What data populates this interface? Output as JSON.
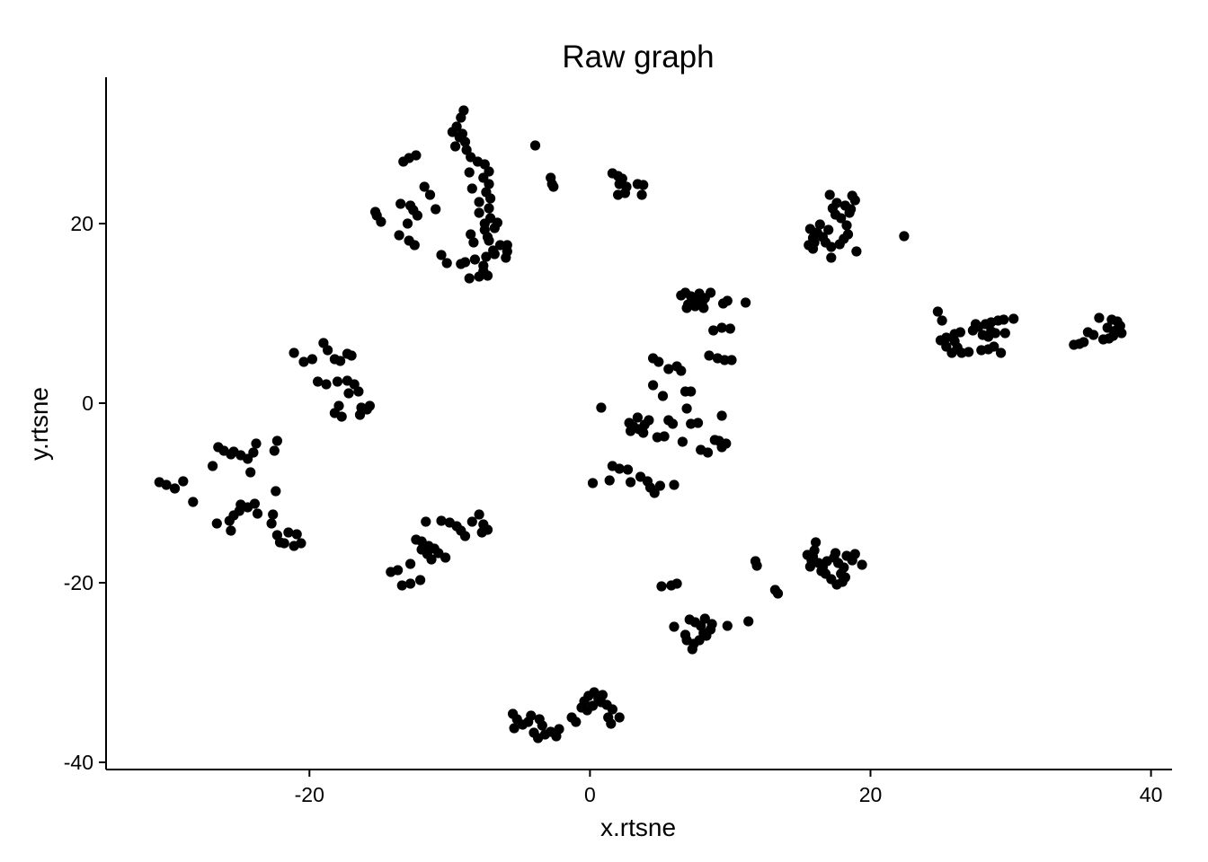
{
  "chart_data": {
    "type": "scatter",
    "title": "Raw graph",
    "xlabel": "x.rtsne",
    "ylabel": "y.rtsne",
    "xlim": [
      -34.5,
      41.5
    ],
    "ylim": [
      -40.8,
      36.3
    ],
    "x_ticks": [
      -20,
      0,
      20,
      40
    ],
    "y_ticks": [
      20,
      0,
      -20,
      -40
    ],
    "x_tick_labels": [
      "-20",
      "0",
      "20",
      "40"
    ],
    "y_tick_labels": [
      "20",
      "0",
      "-20",
      "-40"
    ],
    "grid": false,
    "legend": "none",
    "point_color": "#000000",
    "points": [
      [
        -9.5,
        30.8
      ],
      [
        -9.2,
        31.8
      ],
      [
        -9.0,
        32.6
      ],
      [
        -9.8,
        30.2
      ],
      [
        -9.3,
        29.6
      ],
      [
        -8.9,
        29.1
      ],
      [
        -9.6,
        28.6
      ],
      [
        -8.8,
        28.2
      ],
      [
        -9.1,
        30.0
      ],
      [
        -8.5,
        27.4
      ],
      [
        -8.0,
        26.9
      ],
      [
        -7.5,
        26.6
      ],
      [
        -7.2,
        25.8
      ],
      [
        -7.6,
        25.1
      ],
      [
        -8.6,
        25.7
      ],
      [
        -7.2,
        24.4
      ],
      [
        -8.4,
        23.9
      ],
      [
        -7.4,
        23.5
      ],
      [
        -7.1,
        22.8
      ],
      [
        -7.9,
        22.4
      ],
      [
        -7.2,
        21.7
      ],
      [
        -7.9,
        21.2
      ],
      [
        -7.1,
        20.6
      ],
      [
        -7.5,
        20.0
      ],
      [
        -6.6,
        20.1
      ],
      [
        -6.8,
        19.5
      ],
      [
        -7.5,
        19.3
      ],
      [
        -7.3,
        18.5
      ],
      [
        -8.5,
        18.8
      ],
      [
        -8.3,
        17.9
      ],
      [
        -7.2,
        18.1
      ],
      [
        -6.4,
        17.6
      ],
      [
        -5.9,
        17.6
      ],
      [
        -6.9,
        17.0
      ],
      [
        -5.9,
        16.9
      ],
      [
        -6.0,
        16.2
      ],
      [
        -6.8,
        16.6
      ],
      [
        -7.4,
        16.3
      ],
      [
        -8.2,
        16.0
      ],
      [
        -8.9,
        15.7
      ],
      [
        -9.2,
        15.5
      ],
      [
        -7.6,
        15.3
      ],
      [
        -7.6,
        14.7
      ],
      [
        -7.9,
        14.1
      ],
      [
        -7.3,
        14.2
      ],
      [
        -8.6,
        13.9
      ],
      [
        -10.2,
        15.6
      ],
      [
        -10.6,
        16.5
      ],
      [
        -12.4,
        27.6
      ],
      [
        -12.9,
        27.3
      ],
      [
        -13.3,
        26.9
      ],
      [
        -11.8,
        24.1
      ],
      [
        -11.4,
        23.2
      ],
      [
        -11.0,
        21.6
      ],
      [
        -12.8,
        22.0
      ],
      [
        -12.6,
        21.5
      ],
      [
        -12.3,
        20.9
      ],
      [
        -15.3,
        21.3
      ],
      [
        -15.2,
        20.9
      ],
      [
        -14.9,
        20.2
      ],
      [
        -13.5,
        22.2
      ],
      [
        -13.0,
        20.0
      ],
      [
        -13.6,
        18.7
      ],
      [
        -12.9,
        18.1
      ],
      [
        -12.5,
        17.6
      ],
      [
        -3.9,
        28.7
      ],
      [
        -2.8,
        25.1
      ],
      [
        -2.7,
        24.4
      ],
      [
        -2.6,
        24.1
      ],
      [
        1.6,
        25.6
      ],
      [
        2.0,
        25.3
      ],
      [
        2.3,
        25.0
      ],
      [
        2.1,
        24.4
      ],
      [
        2.6,
        24.1
      ],
      [
        3.4,
        24.4
      ],
      [
        3.8,
        24.3
      ],
      [
        2.5,
        23.4
      ],
      [
        2.0,
        23.2
      ],
      [
        3.7,
        23.2
      ],
      [
        -21.1,
        5.6
      ],
      [
        -20.4,
        4.6
      ],
      [
        -19.8,
        4.9
      ],
      [
        -19.0,
        6.7
      ],
      [
        -18.7,
        5.9
      ],
      [
        -18.2,
        4.9
      ],
      [
        -17.3,
        5.5
      ],
      [
        -17.0,
        5.3
      ],
      [
        -17.8,
        4.7
      ],
      [
        -19.4,
        2.4
      ],
      [
        -18.8,
        2.1
      ],
      [
        -18.0,
        2.4
      ],
      [
        -17.3,
        2.5
      ],
      [
        -16.8,
        2.1
      ],
      [
        -16.5,
        1.3
      ],
      [
        -17.2,
        1.1
      ],
      [
        -17.9,
        -0.3
      ],
      [
        -18.2,
        -1.1
      ],
      [
        -17.7,
        -1.5
      ],
      [
        -16.3,
        -0.5
      ],
      [
        -15.9,
        -0.7
      ],
      [
        -16.4,
        -1.3
      ],
      [
        -15.7,
        -0.3
      ],
      [
        -30.7,
        -8.8
      ],
      [
        -30.2,
        -9.1
      ],
      [
        -29.6,
        -9.5
      ],
      [
        -29.0,
        -8.7
      ],
      [
        -28.3,
        -11.0
      ],
      [
        -26.9,
        -7.0
      ],
      [
        -26.5,
        -4.9
      ],
      [
        -26.1,
        -5.3
      ],
      [
        -25.6,
        -5.7
      ],
      [
        -24.9,
        -5.8
      ],
      [
        -24.4,
        -6.2
      ],
      [
        -25.4,
        -5.4
      ],
      [
        -22.3,
        -4.2
      ],
      [
        -22.5,
        -5.3
      ],
      [
        -23.8,
        -4.5
      ],
      [
        -24.0,
        -5.5
      ],
      [
        -24.2,
        -7.7
      ],
      [
        -26.6,
        -13.4
      ],
      [
        -25.7,
        -13.1
      ],
      [
        -25.4,
        -12.5
      ],
      [
        -25.0,
        -12.0
      ],
      [
        -24.4,
        -11.6
      ],
      [
        -23.9,
        -11.2
      ],
      [
        -24.9,
        -11.3
      ],
      [
        -23.7,
        -12.3
      ],
      [
        -22.7,
        -13.4
      ],
      [
        -22.3,
        -14.7
      ],
      [
        -22.1,
        -15.5
      ],
      [
        -21.5,
        -14.4
      ],
      [
        -20.9,
        -14.6
      ],
      [
        -21.1,
        -15.9
      ],
      [
        -20.6,
        -15.6
      ],
      [
        -21.8,
        -15.6
      ],
      [
        -22.4,
        -9.8
      ],
      [
        -25.6,
        -14.2
      ],
      [
        -22.6,
        -12.4
      ],
      [
        -14.2,
        -18.8
      ],
      [
        -13.7,
        -18.6
      ],
      [
        -13.4,
        -20.3
      ],
      [
        -12.8,
        -20.1
      ],
      [
        -12.1,
        -19.7
      ],
      [
        -12.8,
        -17.9
      ],
      [
        -12.4,
        -15.2
      ],
      [
        -12.0,
        -15.4
      ],
      [
        -11.5,
        -15.9
      ],
      [
        -11.1,
        -16.2
      ],
      [
        -10.8,
        -16.7
      ],
      [
        -10.3,
        -17.2
      ],
      [
        -11.3,
        -17.4
      ],
      [
        -10.6,
        -13.1
      ],
      [
        -10.0,
        -13.3
      ],
      [
        -9.5,
        -13.7
      ],
      [
        -9.2,
        -14.2
      ],
      [
        -8.9,
        -14.8
      ],
      [
        -8.4,
        -13.2
      ],
      [
        -7.9,
        -12.4
      ],
      [
        -7.6,
        -13.5
      ],
      [
        -7.3,
        -14.1
      ],
      [
        -7.7,
        -14.4
      ],
      [
        -11.7,
        -13.2
      ],
      [
        -12.0,
        -16.3
      ],
      [
        -11.6,
        -16.8
      ],
      [
        6.8,
        12.3
      ],
      [
        7.2,
        11.9
      ],
      [
        7.6,
        11.5
      ],
      [
        8.0,
        11.2
      ],
      [
        7.0,
        11.0
      ],
      [
        7.5,
        10.8
      ],
      [
        8.1,
        10.6
      ],
      [
        7.8,
        12.2
      ],
      [
        6.5,
        12.0
      ],
      [
        6.9,
        10.6
      ],
      [
        7.4,
        11.4
      ],
      [
        8.2,
        11.7
      ],
      [
        8.6,
        12.3
      ],
      [
        9.5,
        11.1
      ],
      [
        9.8,
        11.4
      ],
      [
        11.1,
        11.2
      ],
      [
        8.8,
        8.1
      ],
      [
        9.4,
        8.4
      ],
      [
        10.0,
        8.3
      ],
      [
        8.5,
        5.3
      ],
      [
        9.1,
        5.0
      ],
      [
        9.6,
        4.8
      ],
      [
        10.1,
        4.8
      ],
      [
        4.5,
        5.0
      ],
      [
        4.9,
        4.6
      ],
      [
        5.6,
        3.8
      ],
      [
        6.2,
        4.1
      ],
      [
        4.5,
        2.0
      ],
      [
        6.5,
        3.6
      ],
      [
        6.8,
        1.3
      ],
      [
        7.2,
        1.3
      ],
      [
        5.2,
        0.8
      ],
      [
        6.9,
        -0.6
      ],
      [
        0.8,
        -0.5
      ],
      [
        2.8,
        -2.2
      ],
      [
        3.1,
        -2.6
      ],
      [
        3.5,
        -2.9
      ],
      [
        3.9,
        -2.4
      ],
      [
        3.4,
        -1.6
      ],
      [
        2.9,
        -3.1
      ],
      [
        3.8,
        -3.3
      ],
      [
        4.2,
        -1.9
      ],
      [
        4.8,
        -3.8
      ],
      [
        5.3,
        -3.7
      ],
      [
        5.6,
        -1.9
      ],
      [
        5.9,
        -2.3
      ],
      [
        7.2,
        -2.3
      ],
      [
        7.7,
        -2.2
      ],
      [
        9.4,
        -1.4
      ],
      [
        6.6,
        -4.3
      ],
      [
        7.9,
        -5.2
      ],
      [
        8.4,
        -5.5
      ],
      [
        9.2,
        -4.2
      ],
      [
        9.7,
        -4.5
      ],
      [
        9.4,
        -4.9
      ],
      [
        8.9,
        -4.1
      ],
      [
        1.6,
        -7.0
      ],
      [
        2.1,
        -7.3
      ],
      [
        2.7,
        -7.4
      ],
      [
        1.4,
        -8.6
      ],
      [
        2.9,
        -8.8
      ],
      [
        3.6,
        -8.2
      ],
      [
        4.1,
        -8.7
      ],
      [
        4.3,
        -9.4
      ],
      [
        4.6,
        -10.0
      ],
      [
        5.0,
        -9.2
      ],
      [
        6.0,
        -9.1
      ],
      [
        0.2,
        -8.9
      ],
      [
        5.1,
        -20.4
      ],
      [
        5.8,
        -20.3
      ],
      [
        6.2,
        -20.1
      ],
      [
        6.0,
        -24.9
      ],
      [
        7.1,
        -24.1
      ],
      [
        7.5,
        -24.4
      ],
      [
        7.9,
        -24.8
      ],
      [
        8.2,
        -24.0
      ],
      [
        8.6,
        -25.2
      ],
      [
        8.3,
        -25.9
      ],
      [
        7.8,
        -26.4
      ],
      [
        7.4,
        -26.8
      ],
      [
        7.3,
        -27.4
      ],
      [
        6.8,
        -25.8
      ],
      [
        6.9,
        -26.4
      ],
      [
        8.1,
        -25.6
      ],
      [
        8.7,
        -24.6
      ],
      [
        9.8,
        -24.8
      ],
      [
        11.3,
        -24.3
      ],
      [
        11.8,
        -17.6
      ],
      [
        11.9,
        -18.1
      ],
      [
        13.2,
        -20.8
      ],
      [
        13.4,
        -21.2
      ],
      [
        15.5,
        -16.9
      ],
      [
        15.8,
        -17.5
      ],
      [
        16.0,
        -16.4
      ],
      [
        16.3,
        -17.8
      ],
      [
        16.5,
        -18.7
      ],
      [
        16.8,
        -19.0
      ],
      [
        16.1,
        -15.5
      ],
      [
        15.7,
        -18.2
      ],
      [
        16.9,
        -17.6
      ],
      [
        17.4,
        -17.2
      ],
      [
        17.7,
        -17.8
      ],
      [
        18.1,
        -18.3
      ],
      [
        18.3,
        -17.0
      ],
      [
        18.7,
        -17.5
      ],
      [
        18.9,
        -16.8
      ],
      [
        19.4,
        -18.0
      ],
      [
        17.9,
        -19.0
      ],
      [
        18.2,
        -19.4
      ],
      [
        18.0,
        -19.9
      ],
      [
        17.6,
        -20.2
      ],
      [
        17.2,
        -19.6
      ],
      [
        16.6,
        -18.3
      ],
      [
        15.9,
        -17.1
      ],
      [
        17.5,
        -16.7
      ],
      [
        15.6,
        17.6
      ],
      [
        15.9,
        18.4
      ],
      [
        16.2,
        19.0
      ],
      [
        15.7,
        19.4
      ],
      [
        16.4,
        19.9
      ],
      [
        16.6,
        18.5
      ],
      [
        16.8,
        17.9
      ],
      [
        17.2,
        17.4
      ],
      [
        17.8,
        17.7
      ],
      [
        18.1,
        18.3
      ],
      [
        18.4,
        18.8
      ],
      [
        18.3,
        19.8
      ],
      [
        17.9,
        20.6
      ],
      [
        17.5,
        21.0
      ],
      [
        17.3,
        21.7
      ],
      [
        17.1,
        23.2
      ],
      [
        17.6,
        22.3
      ],
      [
        18.2,
        22.0
      ],
      [
        18.6,
        21.6
      ],
      [
        18.9,
        22.6
      ],
      [
        18.7,
        23.1
      ],
      [
        18.5,
        21.2
      ],
      [
        17.2,
        16.2
      ],
      [
        15.9,
        17.2
      ],
      [
        19.0,
        16.9
      ],
      [
        22.4,
        18.6
      ],
      [
        17.0,
        19.3
      ],
      [
        16.0,
        17.9
      ],
      [
        24.8,
        10.2
      ],
      [
        25.1,
        9.2
      ],
      [
        25.0,
        7.0
      ],
      [
        25.4,
        6.3
      ],
      [
        25.8,
        5.6
      ],
      [
        26.2,
        6.2
      ],
      [
        26.5,
        5.6
      ],
      [
        27.0,
        5.7
      ],
      [
        26.0,
        7.7
      ],
      [
        26.4,
        7.9
      ],
      [
        27.3,
        8.1
      ],
      [
        27.7,
        8.5
      ],
      [
        28.2,
        8.8
      ],
      [
        28.6,
        9.0
      ],
      [
        29.1,
        9.2
      ],
      [
        29.5,
        9.3
      ],
      [
        30.2,
        9.4
      ],
      [
        28.0,
        7.6
      ],
      [
        28.4,
        7.4
      ],
      [
        28.9,
        7.8
      ],
      [
        29.6,
        7.8
      ],
      [
        27.9,
        5.9
      ],
      [
        28.4,
        6.0
      ],
      [
        28.8,
        6.3
      ],
      [
        29.3,
        5.6
      ],
      [
        28.6,
        8.0
      ],
      [
        27.5,
        8.8
      ],
      [
        26.0,
        6.9
      ],
      [
        25.4,
        7.3
      ],
      [
        34.5,
        6.5
      ],
      [
        34.9,
        6.6
      ],
      [
        35.2,
        6.8
      ],
      [
        35.5,
        7.9
      ],
      [
        35.9,
        7.6
      ],
      [
        36.3,
        9.5
      ],
      [
        36.6,
        7.1
      ],
      [
        37.0,
        7.2
      ],
      [
        37.3,
        7.5
      ],
      [
        37.5,
        8.1
      ],
      [
        37.8,
        8.6
      ],
      [
        37.6,
        9.1
      ],
      [
        37.2,
        9.3
      ],
      [
        37.9,
        7.8
      ],
      [
        36.9,
        8.4
      ]
    ],
    "bottom_cluster": [
      [
        -5.5,
        -34.6
      ],
      [
        -5.2,
        -35.2
      ],
      [
        -4.8,
        -35.8
      ],
      [
        -5.4,
        -36.2
      ],
      [
        -4.4,
        -35.5
      ],
      [
        -4.0,
        -36.7
      ],
      [
        -3.7,
        -37.3
      ],
      [
        -3.2,
        -36.9
      ],
      [
        -2.8,
        -36.6
      ],
      [
        -2.4,
        -37.1
      ],
      [
        -2.2,
        -36.3
      ],
      [
        -3.4,
        -35.9
      ],
      [
        -3.6,
        -35.2
      ],
      [
        -4.2,
        -34.8
      ],
      [
        -1.3,
        -35.0
      ],
      [
        -1.0,
        -35.5
      ],
      [
        -0.6,
        -33.9
      ],
      [
        -0.4,
        -33.2
      ],
      [
        -0.1,
        -32.6
      ],
      [
        0.3,
        -32.2
      ],
      [
        0.6,
        -32.9
      ],
      [
        0.9,
        -32.5
      ],
      [
        1.2,
        -33.6
      ],
      [
        1.6,
        -34.1
      ],
      [
        1.3,
        -35.0
      ],
      [
        1.5,
        -35.7
      ],
      [
        2.1,
        -35.0
      ],
      [
        0.2,
        -33.7
      ],
      [
        -0.2,
        -34.2
      ],
      [
        0.8,
        -33.3
      ]
    ]
  }
}
